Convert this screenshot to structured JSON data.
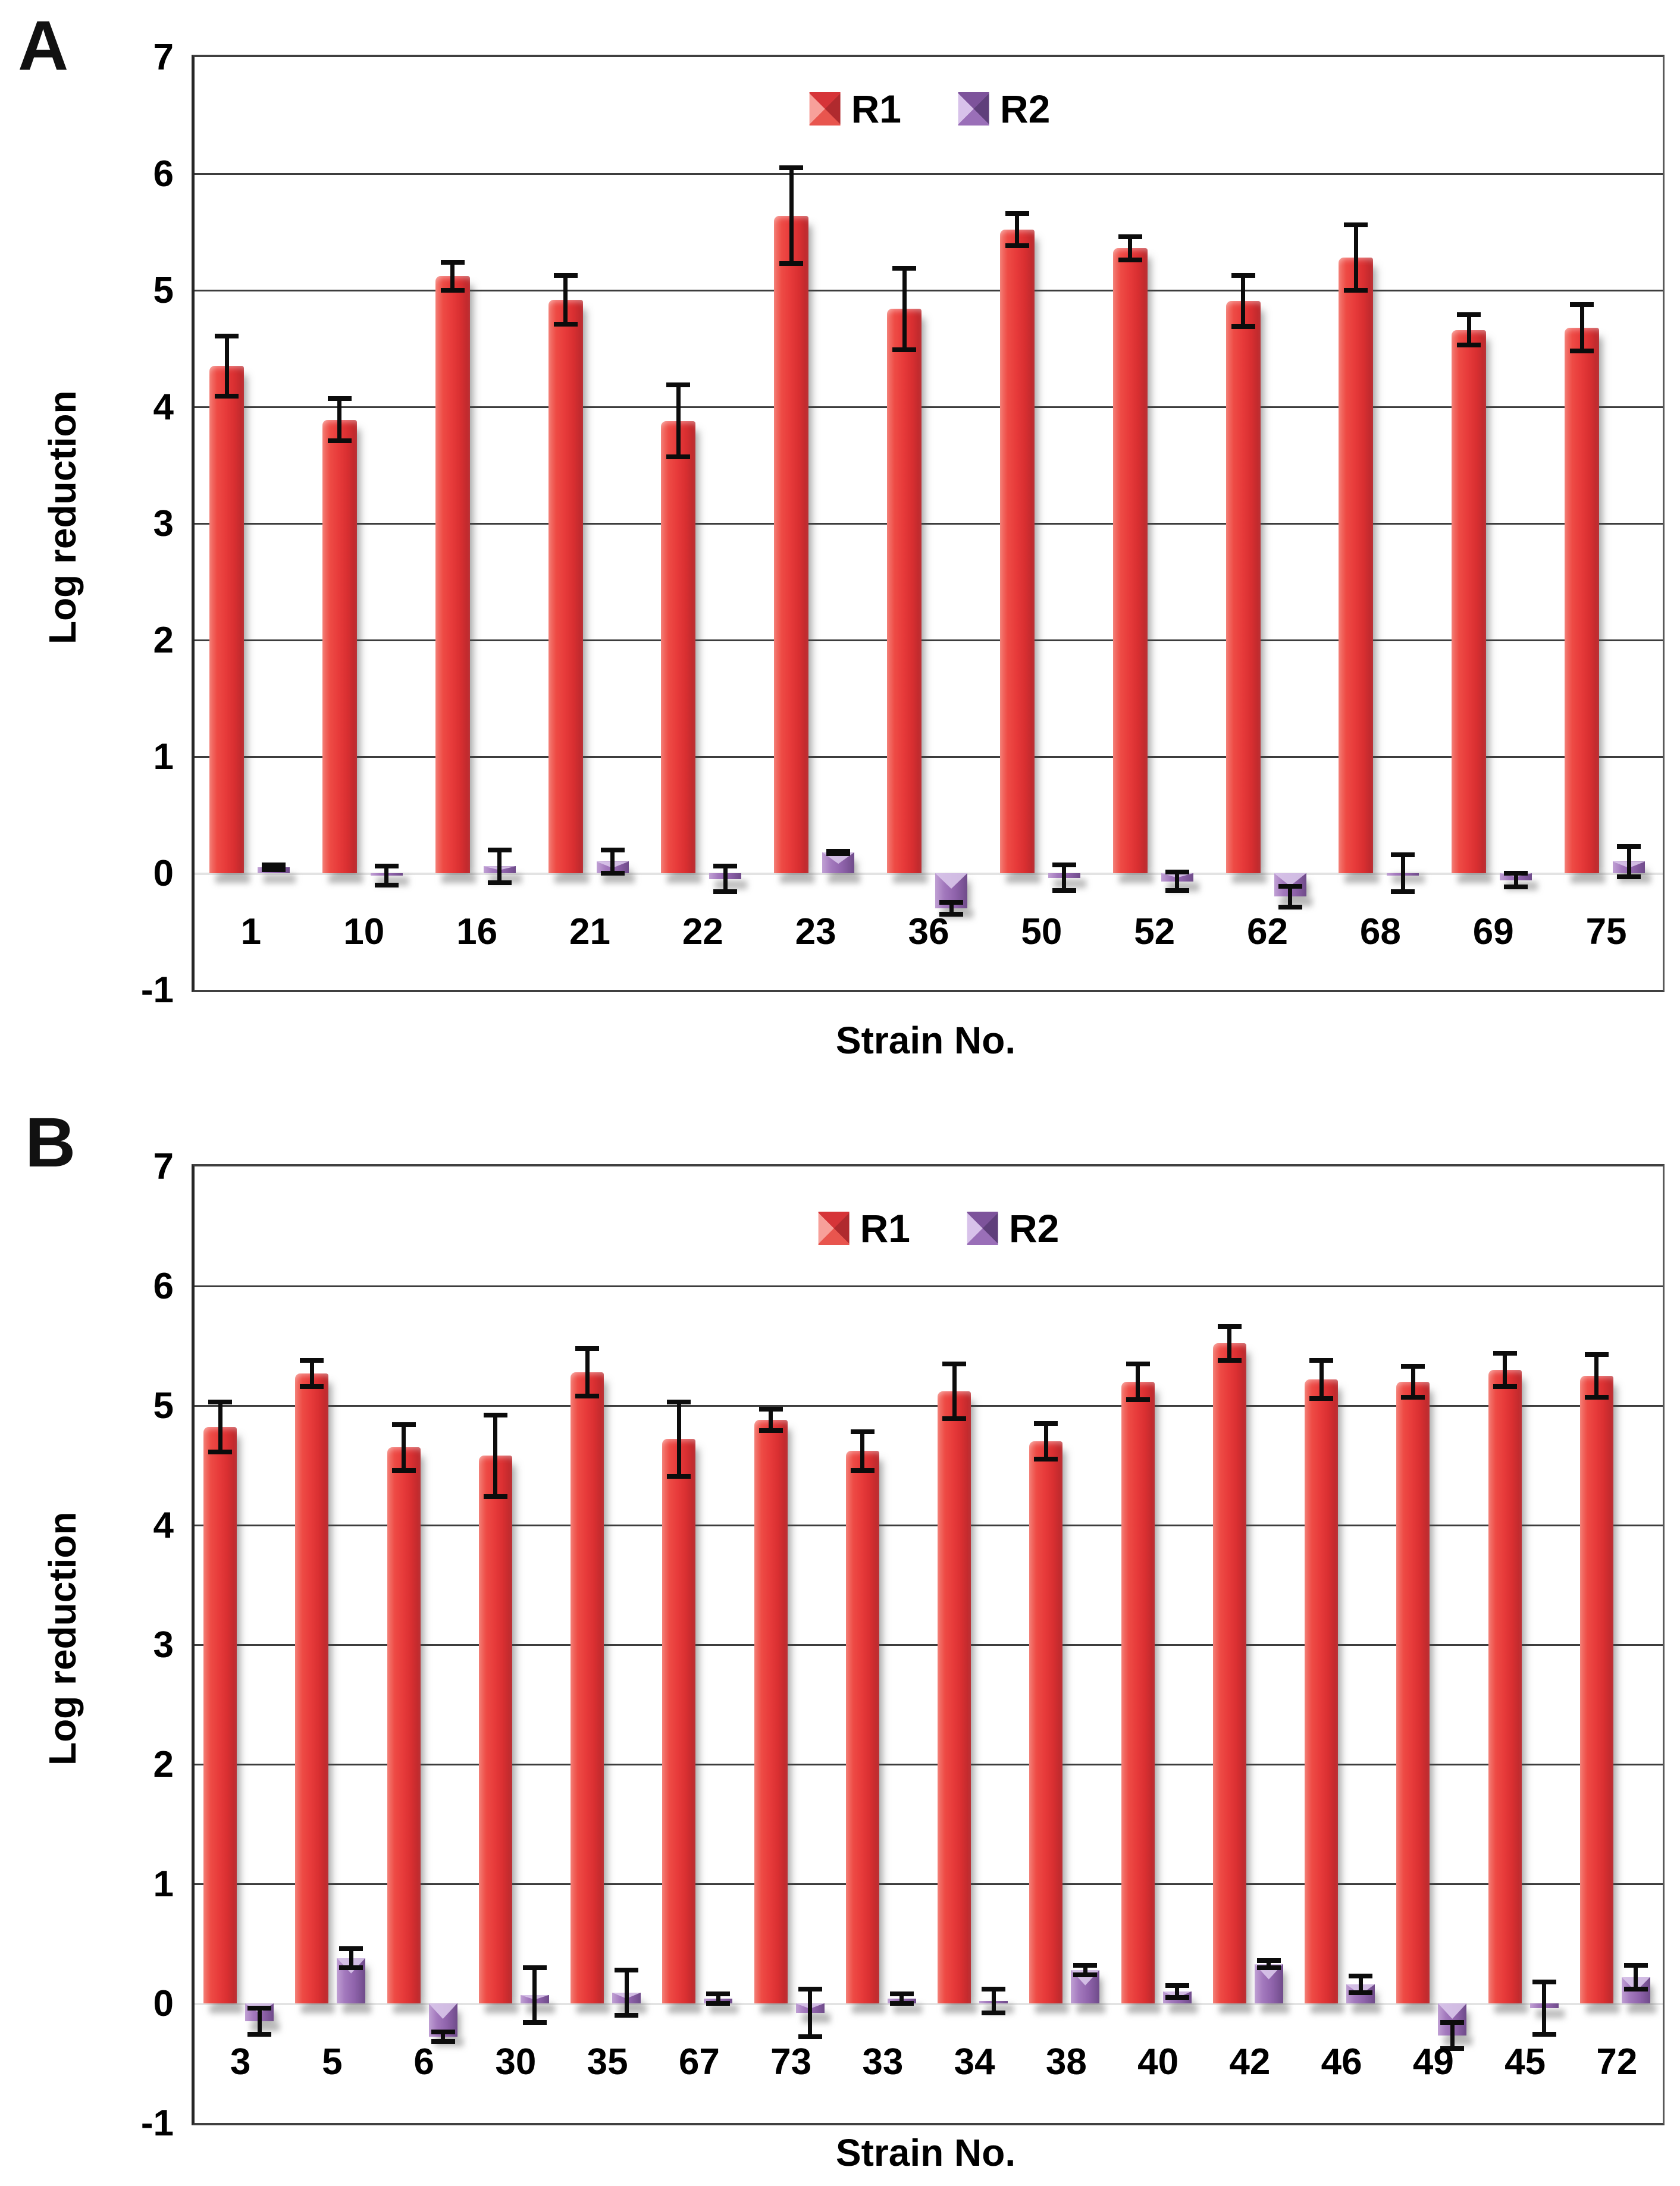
{
  "figure": {
    "background": "#ffffff",
    "panels": [
      {
        "letter": "A"
      },
      {
        "letter": "B"
      }
    ]
  },
  "colors": {
    "r1_bar": "#e73a3a",
    "r2_bar": "#8f63ab",
    "gridline": "#3d3d3d",
    "zero_line": "#e3e3e3",
    "text": "#000000",
    "error_bar": "#0c0c0c"
  },
  "chart_data": [
    {
      "type": "bar",
      "panel": "A",
      "title": "",
      "xlabel": "Strain No.",
      "ylabel": "Log reduction",
      "ylim": [
        -1,
        7
      ],
      "yticks": [
        7,
        6,
        5,
        4,
        3,
        2,
        1,
        0,
        -1
      ],
      "grid": true,
      "legend_position": "top-center",
      "categories": [
        "1",
        "10",
        "16",
        "21",
        "22",
        "23",
        "36",
        "50",
        "52",
        "62",
        "68",
        "69",
        "75"
      ],
      "series": [
        {
          "name": "R1",
          "color": "#e73a3a",
          "values": [
            4.35,
            3.89,
            5.12,
            4.92,
            3.88,
            5.64,
            4.84,
            5.52,
            5.36,
            4.91,
            5.28,
            4.66,
            4.68
          ],
          "errors": [
            0.28,
            0.2,
            0.14,
            0.23,
            0.33,
            0.43,
            0.37,
            0.16,
            0.12,
            0.24,
            0.3,
            0.15,
            0.22
          ]
        },
        {
          "name": "R2",
          "color": "#8f63ab",
          "values": [
            0.05,
            -0.02,
            0.06,
            0.1,
            -0.05,
            0.18,
            -0.3,
            -0.04,
            -0.07,
            -0.2,
            0.0,
            -0.06,
            0.1
          ],
          "errors": [
            0.04,
            0.1,
            0.16,
            0.12,
            0.13,
            0.03,
            0.07,
            0.13,
            0.1,
            0.11,
            0.18,
            0.08,
            0.15
          ]
        }
      ]
    },
    {
      "type": "bar",
      "panel": "B",
      "title": "",
      "xlabel": "Strain No.",
      "ylabel": "Log reduction",
      "ylim": [
        -1,
        7
      ],
      "yticks": [
        7,
        6,
        5,
        4,
        3,
        2,
        1,
        0,
        -1
      ],
      "grid": true,
      "legend_position": "top-center",
      "categories": [
        "3",
        "5",
        "6",
        "30",
        "35",
        "67",
        "73",
        "33",
        "34",
        "38",
        "40",
        "42",
        "46",
        "49",
        "45",
        "72"
      ],
      "series": [
        {
          "name": "R1",
          "color": "#e73a3a",
          "values": [
            4.82,
            5.27,
            4.65,
            4.58,
            5.28,
            4.72,
            4.88,
            4.62,
            5.12,
            4.7,
            5.2,
            5.52,
            5.22,
            5.2,
            5.3,
            5.25
          ],
          "errors": [
            0.23,
            0.13,
            0.21,
            0.36,
            0.22,
            0.33,
            0.11,
            0.18,
            0.25,
            0.17,
            0.17,
            0.16,
            0.18,
            0.15,
            0.16,
            0.2
          ]
        },
        {
          "name": "R2",
          "color": "#8f63ab",
          "values": [
            -0.15,
            0.38,
            -0.28,
            0.07,
            0.09,
            0.04,
            -0.08,
            0.04,
            0.02,
            0.28,
            0.1,
            0.33,
            0.16,
            -0.27,
            -0.04,
            0.22
          ],
          "errors": [
            0.13,
            0.1,
            0.06,
            0.25,
            0.21,
            0.06,
            0.22,
            0.06,
            0.12,
            0.06,
            0.07,
            0.05,
            0.09,
            0.13,
            0.24,
            0.12
          ]
        }
      ]
    }
  ]
}
